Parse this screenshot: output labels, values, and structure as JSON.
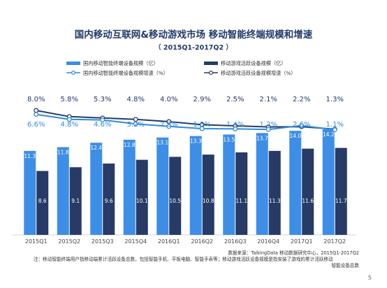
{
  "title": "国内移动互联网&移动游戏市场  移动智能终端规模和增速",
  "subtitle": "（ 2015Q1-2017Q2 ）",
  "legend": {
    "bar1": "国内移动智能终端设备规模（亿）",
    "bar2": "移动游戏活跃设备规模（亿）",
    "line1": "国内移动智能终端设备规模增速（%）",
    "line2": "移动游戏活跃设备规模增速（%）"
  },
  "footnotes": {
    "source": "数据来源：TalkingData 移动数据研究中心，2015Q1-2017Q2",
    "note": "注：移动智能终端用户指移动端累计活跃设备总数，包括智能手机、平板电脑、智能手表等；移动游戏活跃设备规模是指安装了游戏的累计活跃移动",
    "note2": "智能设备总数"
  },
  "page_number": "5",
  "colors": {
    "bar1": "#3d8ee6",
    "bar2": "#273b66",
    "line1": "#2f8be0",
    "line2": "#273b66",
    "title": "#223a6a"
  },
  "chart_data": {
    "type": "bar",
    "categories": [
      "2015Q1",
      "2015Q2",
      "2015Q3",
      "2015Q4",
      "2016Q1",
      "2016Q2",
      "2016Q3",
      "2016Q4",
      "2017Q1",
      "2017Q2"
    ],
    "series": [
      {
        "name": "国内移动智能终端设备规模（亿）",
        "type": "bar",
        "values": [
          11.3,
          11.8,
          12.4,
          12.8,
          13.1,
          13.3,
          13.5,
          13.7,
          14.0,
          14.2
        ]
      },
      {
        "name": "移动游戏活跃设备规模（亿）",
        "type": "bar",
        "values": [
          8.6,
          9.1,
          9.6,
          10.1,
          10.5,
          10.8,
          11.1,
          11.3,
          11.6,
          11.7
        ]
      },
      {
        "name": "国内移动智能终端设备规模增速（%）",
        "type": "line",
        "values": [
          6.6,
          4.8,
          4.6,
          3.2,
          2.3,
          1.5,
          1.4,
          1.2,
          2.6,
          1.1
        ],
        "labels": [
          "6.6%",
          "4.8%",
          "4.6%",
          "3.2%",
          "2.3%",
          "1.5%",
          "1.4%",
          "1.2%",
          "2.6%",
          "1.1%"
        ]
      },
      {
        "name": "移动游戏活跃设备规模增速（%）",
        "type": "line",
        "values": [
          8.0,
          5.8,
          5.3,
          4.8,
          4.0,
          2.9,
          2.5,
          2.1,
          2.2,
          1.3
        ],
        "labels": [
          "8.0%",
          "5.8%",
          "5.3%",
          "4.8%",
          "4.0%",
          "2.9%",
          "2.5%",
          "2.1%",
          "2.2%",
          "1.3%"
        ]
      }
    ],
    "bar_ylim": [
      0,
      16
    ],
    "grid": false,
    "legend_position": "top"
  }
}
